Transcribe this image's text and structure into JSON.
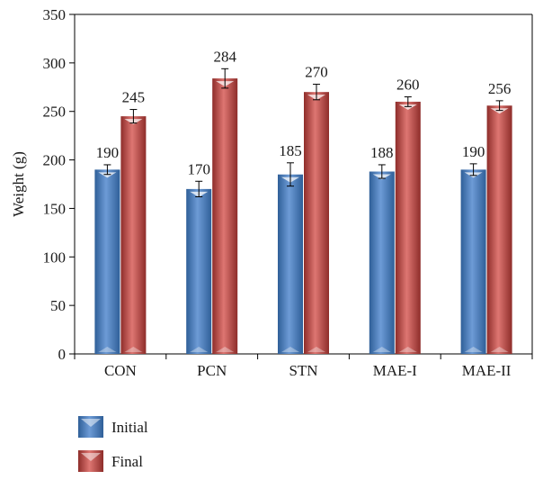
{
  "chart_data": {
    "type": "bar",
    "title": "",
    "xlabel": "",
    "ylabel": "Weight (g)",
    "ylim": [
      0,
      350
    ],
    "yticks": [
      0,
      50,
      100,
      150,
      200,
      250,
      300,
      350
    ],
    "grid": false,
    "legend_position": "bottom-left",
    "categories": [
      "CON",
      "PCN",
      "STN",
      "MAE-I",
      "MAE-II"
    ],
    "series": [
      {
        "name": "Initial",
        "color": "#4f81bd",
        "values": [
          190,
          170,
          185,
          188,
          190
        ],
        "errors": [
          5,
          8,
          12,
          7,
          6
        ]
      },
      {
        "name": "Final",
        "color": "#c0504d",
        "values": [
          245,
          284,
          270,
          260,
          256
        ],
        "errors": [
          7,
          10,
          8,
          5,
          5
        ]
      }
    ],
    "data_labels": [
      [
        "190",
        "170",
        "185",
        "188",
        "190"
      ],
      [
        "245",
        "284",
        "270",
        "260",
        "256"
      ]
    ]
  }
}
